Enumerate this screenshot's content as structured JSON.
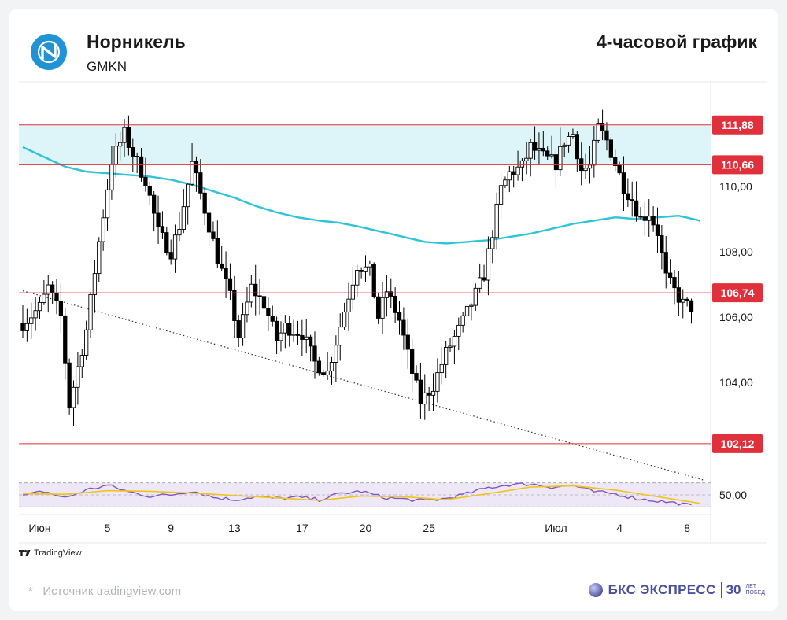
{
  "header": {
    "company": "Норникель",
    "ticker": "GMKN",
    "period": "4-часовой график"
  },
  "footer": {
    "source": "Источник tradingview.com",
    "source_mark": "*",
    "tradingview": "TradingView",
    "brand": "БКС ЭКСПРЕСС",
    "brand_30": "30",
    "brand_years": "ЛЕТ",
    "brand_victory": "ПОБЕД"
  },
  "colors": {
    "bull": "#000000",
    "bear": "#000000",
    "ma": "#2ec4d6",
    "level": "#e0303b",
    "zone": "#ddf5f8",
    "rsi": "#7e57c2",
    "rsi_signal": "#f0c419",
    "rsi_band": "#ede7f6",
    "trend": "#333333"
  },
  "chart_data": {
    "type": "candlestick",
    "ylim": [
      101.2,
      113.2
    ],
    "y_ticks": [
      "110,00",
      "108,00",
      "106,00",
      "104,00"
    ],
    "y_tick_values": [
      110,
      108,
      106,
      104
    ],
    "levels": [
      {
        "label": "111,88",
        "value": 111.88
      },
      {
        "label": "110,66",
        "value": 110.66
      },
      {
        "label": "106,74",
        "value": 106.74
      },
      {
        "label": "102,12",
        "value": 102.12
      }
    ],
    "zone": [
      110.66,
      111.88
    ],
    "x_labels": [
      {
        "label": "Июн",
        "index": 4
      },
      {
        "label": "5",
        "index": 20
      },
      {
        "label": "9",
        "index": 35
      },
      {
        "label": "13",
        "index": 50
      },
      {
        "label": "17",
        "index": 66
      },
      {
        "label": "20",
        "index": 81
      },
      {
        "label": "25",
        "index": 96
      },
      {
        "label": "Июл",
        "index": 126
      },
      {
        "label": "4",
        "index": 141
      },
      {
        "label": "8",
        "index": 157
      }
    ],
    "trendline": {
      "from": [
        0,
        106.8
      ],
      "to": [
        161,
        101.0
      ]
    },
    "rsi_label": "50,00",
    "rsi_range": [
      20,
      80
    ],
    "rsi_band": [
      30,
      70
    ],
    "anchors": [
      [
        0,
        105.8
      ],
      [
        4,
        106.3
      ],
      [
        6,
        106.9
      ],
      [
        9,
        106.0
      ],
      [
        11,
        103.3
      ],
      [
        15,
        105.6
      ],
      [
        18,
        108.3
      ],
      [
        21,
        110.8
      ],
      [
        24,
        111.6
      ],
      [
        26,
        111.0
      ],
      [
        29,
        110.2
      ],
      [
        32,
        108.6
      ],
      [
        35,
        108.0
      ],
      [
        37,
        108.8
      ],
      [
        40,
        110.7
      ],
      [
        43,
        109.3
      ],
      [
        46,
        107.8
      ],
      [
        49,
        106.6
      ],
      [
        51,
        105.4
      ],
      [
        54,
        106.9
      ],
      [
        57,
        106.4
      ],
      [
        60,
        105.3
      ],
      [
        62,
        105.7
      ],
      [
        66,
        105.5
      ],
      [
        69,
        104.6
      ],
      [
        72,
        104.3
      ],
      [
        76,
        106.2
      ],
      [
        79,
        107.6
      ],
      [
        82,
        107.4
      ],
      [
        84,
        106.0
      ],
      [
        86,
        106.8
      ],
      [
        89,
        105.9
      ],
      [
        92,
        104.3
      ],
      [
        94,
        103.4
      ],
      [
        97,
        103.9
      ],
      [
        100,
        104.9
      ],
      [
        103,
        105.6
      ],
      [
        106,
        106.4
      ],
      [
        109,
        107.3
      ],
      [
        111,
        108.6
      ],
      [
        113,
        109.9
      ],
      [
        115,
        110.4
      ],
      [
        118,
        110.6
      ],
      [
        120,
        111.2
      ],
      [
        123,
        110.9
      ],
      [
        126,
        110.7
      ],
      [
        128,
        111.4
      ],
      [
        130,
        111.6
      ],
      [
        132,
        110.5
      ],
      [
        134,
        110.6
      ],
      [
        136,
        111.8
      ],
      [
        138,
        111.4
      ],
      [
        140,
        110.7
      ],
      [
        142,
        110.0
      ],
      [
        144,
        109.6
      ],
      [
        146,
        109.0
      ],
      [
        148,
        109.2
      ],
      [
        150,
        108.6
      ],
      [
        152,
        107.2
      ],
      [
        154,
        106.8
      ],
      [
        156,
        106.4
      ],
      [
        158,
        106.3
      ]
    ],
    "ma_anchors": [
      [
        0,
        111.2
      ],
      [
        5,
        110.9
      ],
      [
        10,
        110.6
      ],
      [
        15,
        110.45
      ],
      [
        20,
        110.4
      ],
      [
        25,
        110.35
      ],
      [
        30,
        110.3
      ],
      [
        35,
        110.2
      ],
      [
        40,
        110.05
      ],
      [
        45,
        109.85
      ],
      [
        50,
        109.65
      ],
      [
        55,
        109.4
      ],
      [
        60,
        109.2
      ],
      [
        65,
        109.05
      ],
      [
        70,
        108.95
      ],
      [
        75,
        108.88
      ],
      [
        80,
        108.75
      ],
      [
        85,
        108.6
      ],
      [
        90,
        108.45
      ],
      [
        95,
        108.3
      ],
      [
        100,
        108.25
      ],
      [
        105,
        108.3
      ],
      [
        110,
        108.35
      ],
      [
        115,
        108.45
      ],
      [
        120,
        108.55
      ],
      [
        125,
        108.7
      ],
      [
        130,
        108.85
      ],
      [
        135,
        108.95
      ],
      [
        140,
        109.05
      ],
      [
        145,
        109.0
      ],
      [
        150,
        109.05
      ],
      [
        155,
        109.1
      ],
      [
        160,
        108.95
      ]
    ],
    "rsi_anchors": [
      [
        0,
        48
      ],
      [
        5,
        56
      ],
      [
        10,
        45
      ],
      [
        15,
        58
      ],
      [
        20,
        66
      ],
      [
        25,
        55
      ],
      [
        30,
        48
      ],
      [
        35,
        50
      ],
      [
        40,
        57
      ],
      [
        45,
        46
      ],
      [
        50,
        42
      ],
      [
        55,
        47
      ],
      [
        60,
        44
      ],
      [
        65,
        46
      ],
      [
        70,
        42
      ],
      [
        75,
        52
      ],
      [
        80,
        56
      ],
      [
        85,
        46
      ],
      [
        90,
        43
      ],
      [
        95,
        40
      ],
      [
        100,
        44
      ],
      [
        105,
        52
      ],
      [
        110,
        62
      ],
      [
        115,
        67
      ],
      [
        120,
        68
      ],
      [
        125,
        63
      ],
      [
        130,
        66
      ],
      [
        135,
        55
      ],
      [
        140,
        52
      ],
      [
        145,
        44
      ],
      [
        150,
        40
      ],
      [
        155,
        36
      ],
      [
        158,
        32
      ]
    ],
    "rsi_signal_anchors": [
      [
        0,
        52
      ],
      [
        10,
        51
      ],
      [
        20,
        57
      ],
      [
        30,
        56
      ],
      [
        40,
        53
      ],
      [
        50,
        49
      ],
      [
        60,
        45
      ],
      [
        70,
        41
      ],
      [
        80,
        48
      ],
      [
        90,
        47
      ],
      [
        100,
        42
      ],
      [
        110,
        52
      ],
      [
        120,
        63
      ],
      [
        130,
        65
      ],
      [
        140,
        58
      ],
      [
        150,
        47
      ],
      [
        160,
        36
      ]
    ]
  }
}
